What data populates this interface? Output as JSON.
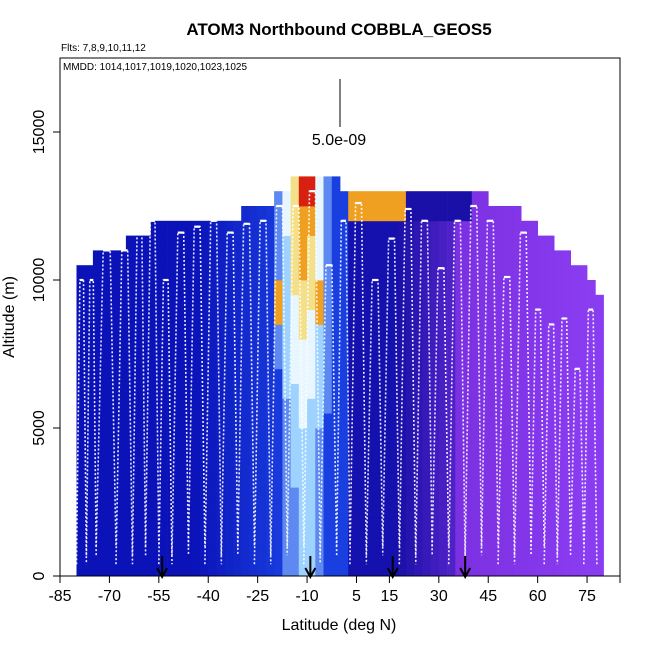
{
  "chart_data": {
    "type": "heatmap",
    "title": "ATOM3 Northbound COBBLA_GEOS5",
    "subtitle_flights": "Flts: 7,8,9,10,11,12",
    "subtitle_dates": "MMDD: 1014,1017,1019,1020,1023,1025",
    "xlabel": "Latitude (deg N)",
    "ylabel": "Altitude (m)",
    "xlim": [
      -85,
      85
    ],
    "ylim": [
      0,
      17500
    ],
    "x_ticks": [
      -85,
      -70,
      -55,
      -40,
      -25,
      -10,
      5,
      15,
      30,
      45,
      60,
      75
    ],
    "x_tick_labels": [
      "-85",
      "-70",
      "-55",
      "-40",
      "-25",
      "-10",
      "5",
      "15",
      "30",
      "45",
      "60",
      "75"
    ],
    "y_ticks": [
      0,
      5000,
      10000,
      15000
    ],
    "y_tick_labels": [
      "0",
      "5000",
      "10000",
      "15000"
    ],
    "scale_label": "5.0e-09",
    "arrow_latitudes": [
      -54,
      -9,
      16,
      38
    ],
    "curtain_top_profile": [
      {
        "lat": -80,
        "top": 10500
      },
      {
        "lat": -75,
        "top": 11000
      },
      {
        "lat": -65,
        "top": 11500
      },
      {
        "lat": -58,
        "top": 12000
      },
      {
        "lat": -45,
        "top": 12000
      },
      {
        "lat": -30,
        "top": 12500
      },
      {
        "lat": -20,
        "top": 13000
      },
      {
        "lat": -15,
        "top": 13500
      },
      {
        "lat": -7,
        "top": 13500
      },
      {
        "lat": 0,
        "top": 13000
      },
      {
        "lat": 40,
        "top": 13000
      },
      {
        "lat": 46,
        "top": 12500
      },
      {
        "lat": 54,
        "top": 12000
      },
      {
        "lat": 60,
        "top": 11500
      },
      {
        "lat": 66,
        "top": 11000
      },
      {
        "lat": 70,
        "top": 10500
      },
      {
        "lat": 75,
        "top": 10000
      },
      {
        "lat": 78,
        "top": 9500
      },
      {
        "lat": 80,
        "top": 8500
      }
    ],
    "colors": {
      "south_deep": "#0a12b8",
      "south_mid": "#1a3fe0",
      "plume_light": "#9fd3ff",
      "plume_pale": "#e8f6ff",
      "plume_yellow": "#f5e08a",
      "plume_orange": "#f0a020",
      "plume_red": "#d82010",
      "north_navy": "#1a10a8",
      "north_purple": "#7a30e0",
      "north_violet": "#8a3cf0",
      "flight_track": "#ffffff"
    }
  }
}
